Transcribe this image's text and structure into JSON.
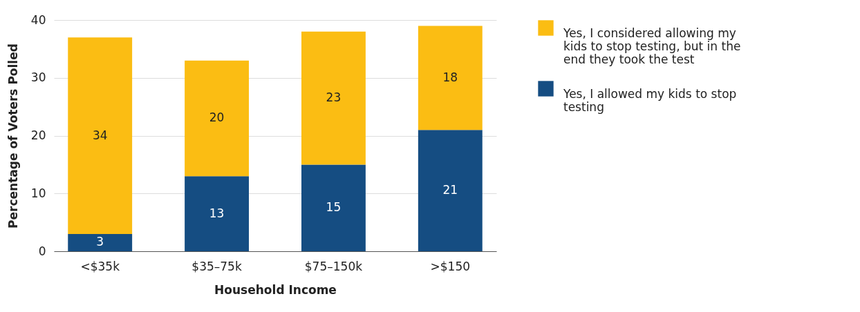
{
  "chart_data": {
    "type": "bar",
    "stacked": true,
    "xlabel": "Household Income",
    "ylabel": "Percentage of Voters Polled",
    "categories": [
      "<$35k",
      "$35–75k",
      "$75–150k",
      ">$150"
    ],
    "series": [
      {
        "name": "Yes, I allowed my kids to stop testing",
        "color": "#154d82",
        "values": [
          3,
          13,
          15,
          21
        ]
      },
      {
        "name": "Yes, I considered allowing my kids to stop testing, but in the end they took the test",
        "color": "#fbbd13",
        "values": [
          34,
          20,
          23,
          18
        ]
      }
    ],
    "ylim": [
      0,
      40
    ],
    "yticks": [
      0,
      10,
      20,
      30,
      40
    ],
    "grid": "y",
    "legend": "right",
    "data_labels": true
  }
}
